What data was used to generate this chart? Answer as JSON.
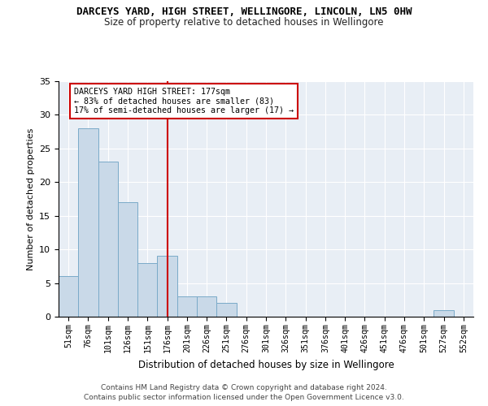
{
  "title": "DARCEYS YARD, HIGH STREET, WELLINGORE, LINCOLN, LN5 0HW",
  "subtitle": "Size of property relative to detached houses in Wellingore",
  "xlabel": "Distribution of detached houses by size in Wellingore",
  "ylabel": "Number of detached properties",
  "tick_labels": [
    "51sqm",
    "76sqm",
    "101sqm",
    "126sqm",
    "151sqm",
    "176sqm",
    "201sqm",
    "226sqm",
    "251sqm",
    "276sqm",
    "301sqm",
    "326sqm",
    "351sqm",
    "376sqm",
    "401sqm",
    "426sqm",
    "451sqm",
    "476sqm",
    "501sqm",
    "527sqm",
    "552sqm"
  ],
  "values": [
    6,
    28,
    23,
    17,
    8,
    9,
    3,
    3,
    2,
    0,
    0,
    0,
    0,
    0,
    0,
    0,
    0,
    0,
    0,
    1,
    0
  ],
  "bar_color": "#c9d9e8",
  "bar_edge_color": "#7aaac8",
  "background_color": "#e8eef5",
  "ylim": [
    0,
    35
  ],
  "yticks": [
    0,
    5,
    10,
    15,
    20,
    25,
    30,
    35
  ],
  "property_line_index": 5,
  "annotation_line1": "DARCEYS YARD HIGH STREET: 177sqm",
  "annotation_line2": "← 83% of detached houses are smaller (83)",
  "annotation_line3": "17% of semi-detached houses are larger (17) →",
  "annotation_box_color": "#cc0000",
  "footer_line1": "Contains HM Land Registry data © Crown copyright and database right 2024.",
  "footer_line2": "Contains public sector information licensed under the Open Government Licence v3.0."
}
